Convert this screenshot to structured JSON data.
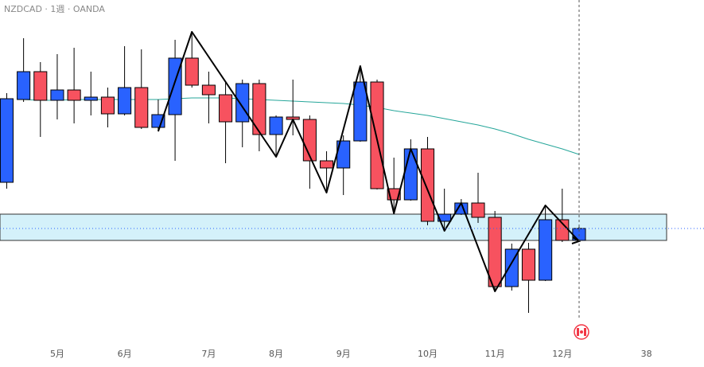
{
  "chart_data": {
    "type": "candlestick",
    "title": "NZDCAD · 1週 · OANDA",
    "xlim": [
      -0.4,
      39.2
    ],
    "ylim": [
      0.803,
      0.846
    ],
    "xticks": [
      {
        "value": 3,
        "label": "5月"
      },
      {
        "value": 7,
        "label": "6月"
      },
      {
        "value": 12,
        "label": "7月"
      },
      {
        "value": 16,
        "label": "8月"
      },
      {
        "value": 20,
        "label": "9月"
      },
      {
        "value": 25,
        "label": "10月"
      },
      {
        "value": 29,
        "label": "11月"
      },
      {
        "value": 33,
        "label": "12月"
      },
      38
    ],
    "up_color": "#2962ff",
    "down_color": "#f7525f",
    "x": [
      0,
      1,
      2,
      3,
      4,
      5,
      6,
      7,
      8,
      9,
      10,
      11,
      12,
      13,
      14,
      15,
      16,
      17,
      18,
      19,
      20,
      21,
      22,
      23,
      24,
      25,
      26,
      27,
      28,
      29,
      30,
      31,
      32,
      33,
      34
    ],
    "open": [
      0.8231,
      0.8335,
      0.837,
      0.8334,
      0.8347,
      0.8334,
      0.8338,
      0.8317,
      0.835,
      0.83,
      0.8316,
      0.8387,
      0.8353,
      0.8341,
      0.8307,
      0.8355,
      0.8291,
      0.8313,
      0.831,
      0.8258,
      0.8249,
      0.8283,
      0.8357,
      0.8223,
      0.8209,
      0.8273,
      0.8182,
      0.8191,
      0.8205,
      0.8187,
      0.81,
      0.8147,
      0.8108,
      0.8184,
      0.8158
    ],
    "high": [
      0.8343,
      0.8412,
      0.8382,
      0.8392,
      0.84,
      0.837,
      0.835,
      0.8402,
      0.8398,
      0.8335,
      0.841,
      0.842,
      0.837,
      0.8357,
      0.836,
      0.836,
      0.8315,
      0.836,
      0.8315,
      0.827,
      0.829,
      0.8377,
      0.836,
      0.8262,
      0.8285,
      0.8288,
      0.8223,
      0.821,
      0.8243,
      0.8195,
      0.8154,
      0.8155,
      0.8202,
      0.8223,
      0.8176
    ],
    "low": [
      0.8223,
      0.8332,
      0.8288,
      0.831,
      0.8305,
      0.8315,
      0.83,
      0.8315,
      0.8298,
      0.8295,
      0.8258,
      0.835,
      0.8305,
      0.8255,
      0.8275,
      0.827,
      0.8263,
      0.829,
      0.8223,
      0.8218,
      0.8215,
      0.8282,
      0.8222,
      0.8192,
      0.8208,
      0.8177,
      0.817,
      0.819,
      0.818,
      0.8094,
      0.8095,
      0.8067,
      0.8107,
      0.8156,
      0.8157
    ],
    "close": [
      0.8336,
      0.837,
      0.8334,
      0.8347,
      0.8334,
      0.8338,
      0.8317,
      0.835,
      0.83,
      0.8316,
      0.8387,
      0.8353,
      0.8341,
      0.8307,
      0.8355,
      0.8291,
      0.8313,
      0.831,
      0.8258,
      0.8249,
      0.8283,
      0.8357,
      0.8223,
      0.8209,
      0.8273,
      0.8182,
      0.8191,
      0.8205,
      0.8187,
      0.81,
      0.8147,
      0.8108,
      0.8184,
      0.8158,
      0.8173
    ],
    "ma": {
      "color": "#26a69a",
      "values": [
        null,
        0.8335,
        0.8334,
        0.8334,
        0.8335,
        0.8335,
        0.8335,
        0.8335,
        0.8335,
        0.8335,
        0.8336,
        0.8337,
        0.8337,
        0.8337,
        0.8336,
        0.8335,
        0.8334,
        0.8333,
        0.8332,
        0.8331,
        0.833,
        0.8328,
        0.8325,
        0.8321,
        0.8318,
        0.8315,
        0.8311,
        0.8307,
        0.8303,
        0.8298,
        0.8292,
        0.8285,
        0.8279,
        0.8273,
        0.8266
      ]
    },
    "zigzag": {
      "color": "#000000",
      "x": [
        9,
        11,
        16,
        17,
        19,
        21,
        23,
        24,
        26,
        27,
        29,
        32,
        34
      ],
      "values": [
        0.8295,
        0.842,
        0.8263,
        0.831,
        0.8218,
        0.8377,
        0.8192,
        0.8273,
        0.817,
        0.8205,
        0.8094,
        0.8202,
        0.8157
      ]
    },
    "zone": {
      "low": 0.8158,
      "high": 0.8191,
      "color": "#d4f1fa"
    }
  }
}
